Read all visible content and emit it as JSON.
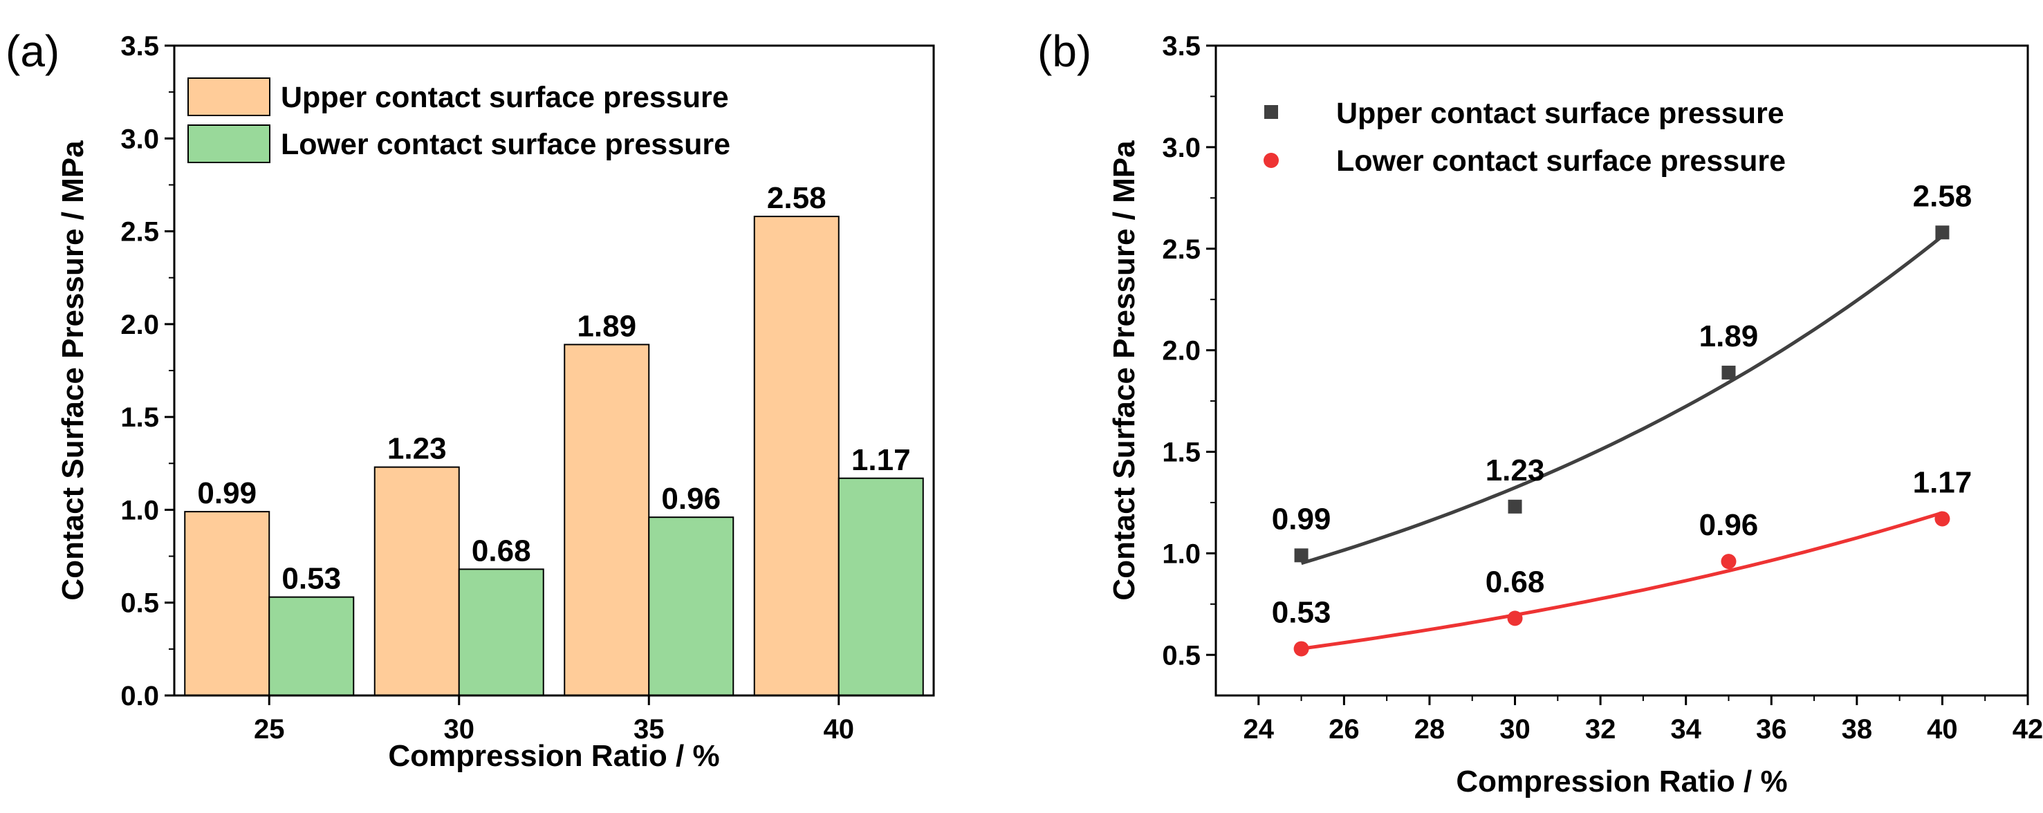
{
  "panels": {
    "a": {
      "label": "(a)"
    },
    "b": {
      "label": "(b)"
    }
  },
  "chart_data": [
    {
      "type": "bar",
      "categories": [
        "25",
        "30",
        "35",
        "40"
      ],
      "series": [
        {
          "name": "Upper contact surface pressure",
          "values": [
            0.99,
            1.23,
            1.89,
            2.58
          ],
          "color": "#FFCC99",
          "labels": [
            "0.99",
            "1.23",
            "1.89",
            "2.58"
          ]
        },
        {
          "name": "Lower contact surface pressure",
          "values": [
            0.53,
            0.68,
            0.96,
            1.17
          ],
          "color": "#99D99A",
          "labels": [
            "0.53",
            "0.68",
            "0.96",
            "1.17"
          ]
        }
      ],
      "xlabel": "Compression Ratio / %",
      "ylabel": "Contact Surface Pressure / MPa",
      "ylim": [
        0,
        3.5
      ],
      "yticks": [
        "0.0",
        "0.5",
        "1.0",
        "1.5",
        "2.0",
        "2.5",
        "3.0",
        "3.5"
      ],
      "grid": false,
      "legend_position": "top-left"
    },
    {
      "type": "scatter",
      "series": [
        {
          "name": "Upper contact surface pressure",
          "x": [
            25,
            30,
            35,
            40
          ],
          "y": [
            0.99,
            1.23,
            1.89,
            2.58
          ],
          "labels": [
            "0.99",
            "1.23",
            "1.89",
            "2.58"
          ],
          "marker": "square",
          "color": "#404040",
          "fit": "exponential"
        },
        {
          "name": "Lower contact surface pressure",
          "x": [
            25,
            30,
            35,
            40
          ],
          "y": [
            0.53,
            0.68,
            0.96,
            1.17
          ],
          "labels": [
            "0.53",
            "0.68",
            "0.96",
            "1.17"
          ],
          "marker": "circle",
          "color": "#EE3333",
          "fit": "exponential"
        }
      ],
      "xlabel": "Compression Ratio / %",
      "ylabel": "Contact Surface Pressure / MPa",
      "xlim": [
        23,
        42
      ],
      "xticks": [
        "24",
        "26",
        "28",
        "30",
        "32",
        "34",
        "36",
        "38",
        "40",
        "42"
      ],
      "ylim": [
        0.3,
        3.5
      ],
      "yticks": [
        "0.5",
        "1.0",
        "1.5",
        "2.0",
        "2.5",
        "3.0",
        "3.5"
      ],
      "grid": false,
      "legend_position": "top-left"
    }
  ]
}
